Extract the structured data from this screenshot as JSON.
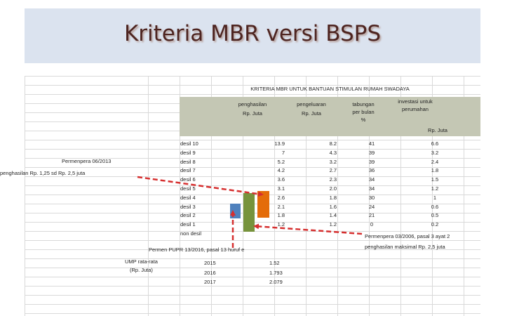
{
  "slide": {
    "title": "Kriteria MBR versi BSPS"
  },
  "table": {
    "title": "KRITERIA MBR UNTUK BANTUAN STIMULAN RUMAH SWADAYA",
    "headers": {
      "penghasilan": "penghasilan",
      "penghasilan_unit": "Rp. Juta",
      "pengeluaran": "pengeluaran",
      "pengeluaran_unit": "Rp. Juta",
      "tabungan_1": "tabungan",
      "tabungan_2": "per bulan",
      "tabungan_3": "%",
      "investasi_1": "investasi untuk",
      "investasi_2": "perumahan",
      "investasi_unit": "Rp. Juta"
    },
    "rows": [
      {
        "label": "desil 10",
        "penghasilan": "13.9",
        "pengeluaran": "8.2",
        "tabungan": "41",
        "investasi": "6.6"
      },
      {
        "label": "desil 9",
        "penghasilan": "7",
        "pengeluaran": "4.3",
        "tabungan": "39",
        "investasi": "3.2"
      },
      {
        "label": "desil 8",
        "penghasilan": "5.2",
        "pengeluaran": "3.2",
        "tabungan": "39",
        "investasi": "2.4"
      },
      {
        "label": "desil 7",
        "penghasilan": "4.2",
        "pengeluaran": "2.7",
        "tabungan": "36",
        "investasi": "1.8"
      },
      {
        "label": "desil 6",
        "penghasilan": "3.6",
        "pengeluaran": "2.3",
        "tabungan": "34",
        "investasi": "1.5"
      },
      {
        "label": "desil 5",
        "penghasilan": "3.1",
        "pengeluaran": "2.0",
        "tabungan": "34",
        "investasi": "1.2"
      },
      {
        "label": "desil 4",
        "penghasilan": "2.6",
        "pengeluaran": "1.8",
        "tabungan": "30",
        "investasi": "1"
      },
      {
        "label": "desil 3",
        "penghasilan": "2.1",
        "pengeluaran": "1.6",
        "tabungan": "24",
        "investasi": "0.6"
      },
      {
        "label": "desil 2",
        "penghasilan": "1.8",
        "pengeluaran": "1.4",
        "tabungan": "21",
        "investasi": "0.5"
      },
      {
        "label": "desil 1",
        "penghasilan": "1.2",
        "pengeluaran": "1.2",
        "tabungan": "0",
        "investasi": "0.2"
      },
      {
        "label": "non desil",
        "penghasilan": "",
        "pengeluaran": "",
        "tabungan": "",
        "investasi": ""
      }
    ]
  },
  "annotations": {
    "permenpera_06_line1": "Permenpera 06/2013",
    "permenpera_06_line2": "penghasilan Rp. 1,25 sd    Rp. 2,5 juta",
    "permenpera_03_line1": "Permenpera 03/2006, pasal 3 ayat 2",
    "permenpera_03_line2": "penghasilan maksimal Rp. 2,5 juta",
    "permen_pupr": "Permen PUPR 13/2016, pasal 13 huruf e"
  },
  "ump": {
    "label_1": "UMP rata-rata",
    "label_2": "(Rp. Juta)",
    "rows": [
      {
        "year": "2015",
        "value": "1.52"
      },
      {
        "year": "2016",
        "value": "1.793"
      },
      {
        "year": "2017",
        "value": "2.079"
      }
    ]
  },
  "colors": {
    "bar_blue": "#4f81bd",
    "bar_green": "#77933c",
    "bar_orange": "#e46c0a",
    "arrow": "#d62f2f"
  }
}
